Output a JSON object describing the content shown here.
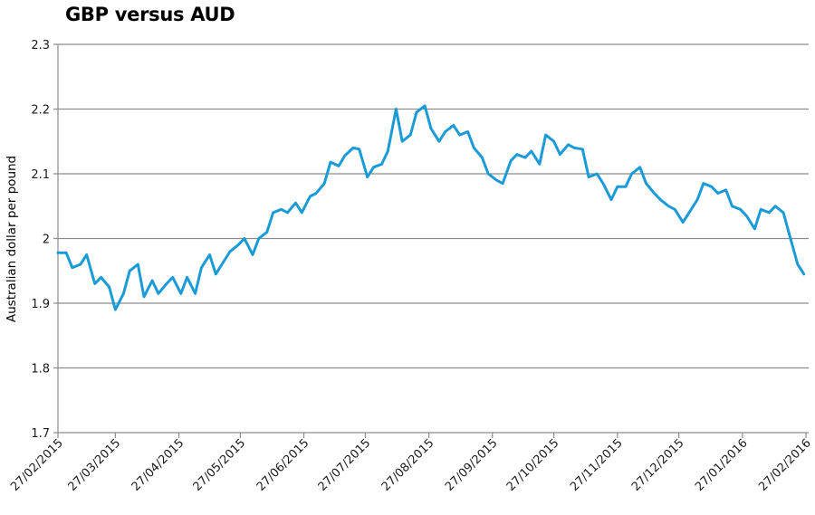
{
  "chart_data": {
    "type": "line",
    "title": "GBP versus AUD",
    "xlabel": "",
    "ylabel": "Australian dollar per pound",
    "ylim": [
      1.7,
      2.3
    ],
    "yticks": [
      "1.7",
      "1.8",
      "1.9",
      "2",
      "2.1",
      "2.2",
      "2.3"
    ],
    "xticks": [
      "27/02/2015",
      "27/03/2015",
      "27/04/2015",
      "27/05/2015",
      "27/06/2015",
      "27/07/2015",
      "27/08/2015",
      "27/09/2015",
      "27/10/2015",
      "27/11/2015",
      "27/12/2015",
      "27/01/2016",
      "27/02/2016"
    ],
    "grid": "horizontal",
    "legend": "none",
    "line_color": "#1a9bd7",
    "series": [
      {
        "name": "GBP/AUD",
        "x": [
          "27/02/2015",
          "03/03/2015",
          "06/03/2015",
          "10/03/2015",
          "13/03/2015",
          "17/03/2015",
          "20/03/2015",
          "24/03/2015",
          "27/03/2015",
          "31/03/2015",
          "03/04/2015",
          "07/04/2015",
          "10/04/2015",
          "14/04/2015",
          "17/04/2015",
          "21/04/2015",
          "24/04/2015",
          "28/04/2015",
          "01/05/2015",
          "05/05/2015",
          "08/05/2015",
          "12/05/2015",
          "15/05/2015",
          "19/05/2015",
          "22/05/2015",
          "26/05/2015",
          "29/05/2015",
          "02/06/2015",
          "05/06/2015",
          "09/06/2015",
          "12/06/2015",
          "16/06/2015",
          "19/06/2015",
          "23/06/2015",
          "26/06/2015",
          "30/06/2015",
          "03/07/2015",
          "07/07/2015",
          "10/07/2015",
          "14/07/2015",
          "17/07/2015",
          "21/07/2015",
          "24/07/2015",
          "28/07/2015",
          "31/07/2015",
          "04/08/2015",
          "07/08/2015",
          "11/08/2015",
          "14/08/2015",
          "18/08/2015",
          "21/08/2015",
          "25/08/2015",
          "28/08/2015",
          "01/09/2015",
          "04/09/2015",
          "08/09/2015",
          "11/09/2015",
          "15/09/2015",
          "18/09/2015",
          "22/09/2015",
          "25/09/2015",
          "29/09/2015",
          "02/10/2015",
          "06/10/2015",
          "09/10/2015",
          "13/10/2015",
          "16/10/2015",
          "20/10/2015",
          "23/10/2015",
          "27/10/2015",
          "30/10/2015",
          "03/11/2015",
          "06/11/2015",
          "10/11/2015",
          "13/11/2015",
          "17/11/2015",
          "20/11/2015",
          "24/11/2015",
          "27/11/2015",
          "01/12/2015",
          "04/12/2015",
          "08/12/2015",
          "11/12/2015",
          "15/12/2015",
          "18/12/2015",
          "22/12/2015",
          "25/12/2015",
          "29/12/2015",
          "01/01/2016",
          "05/01/2016",
          "08/01/2016",
          "12/01/2016",
          "15/01/2016",
          "19/01/2016",
          "22/01/2016",
          "26/01/2016",
          "29/01/2016",
          "02/02/2016",
          "05/02/2016",
          "09/02/2016",
          "12/02/2016",
          "16/02/2016",
          "19/02/2016",
          "23/02/2016",
          "26/02/2016"
        ],
        "values": [
          1.978,
          1.978,
          1.955,
          1.96,
          1.975,
          1.93,
          1.94,
          1.925,
          1.89,
          1.915,
          1.95,
          1.96,
          1.91,
          1.935,
          1.915,
          1.93,
          1.94,
          1.915,
          1.94,
          1.915,
          1.955,
          1.975,
          1.945,
          1.965,
          1.98,
          1.99,
          2.0,
          1.975,
          2.0,
          2.01,
          2.04,
          2.045,
          2.04,
          2.055,
          2.04,
          2.065,
          2.07,
          2.085,
          2.118,
          2.112,
          2.128,
          2.14,
          2.138,
          2.095,
          2.11,
          2.115,
          2.135,
          2.2,
          2.15,
          2.16,
          2.195,
          2.205,
          2.17,
          2.15,
          2.165,
          2.175,
          2.16,
          2.165,
          2.14,
          2.125,
          2.1,
          2.09,
          2.085,
          2.12,
          2.13,
          2.125,
          2.135,
          2.115,
          2.16,
          2.15,
          2.13,
          2.145,
          2.14,
          2.138,
          2.095,
          2.1,
          2.085,
          2.06,
          2.08,
          2.08,
          2.1,
          2.11,
          2.085,
          2.07,
          2.06,
          2.05,
          2.045,
          2.025,
          2.04,
          2.06,
          2.085,
          2.08,
          2.07,
          2.075,
          2.05,
          2.045,
          2.035,
          2.015,
          2.045,
          2.04,
          2.05,
          2.04,
          2.005,
          1.96,
          1.945
        ]
      }
    ]
  }
}
